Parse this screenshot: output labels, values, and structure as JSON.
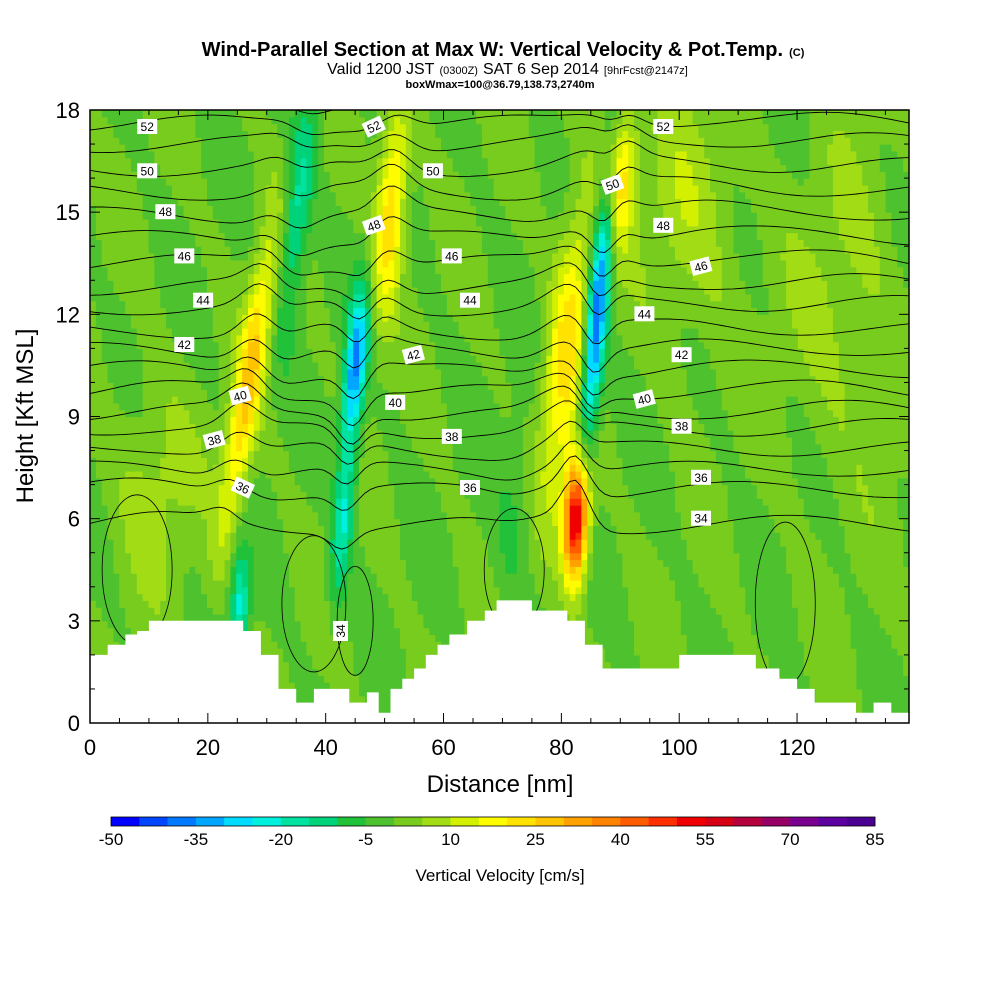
{
  "title": {
    "main": "Wind-Parallel Section at Max W: Vertical Velocity & Pot.Temp.",
    "main_suffix": "(C)",
    "valid_prefix": "Valid 1200 JST",
    "valid_zulu": "(0300Z)",
    "valid_date": "SAT 6 Sep 2014",
    "forecast": "[9hrFcst@2147z]",
    "box": "boxWmax=100@36.79,138.73,2740m"
  },
  "chart_data": {
    "type": "heatmap",
    "xlabel": "Distance [nm]",
    "ylabel": "Height [Kft MSL]",
    "xlim": [
      0,
      139
    ],
    "ylim": [
      0,
      18
    ],
    "x_ticks": [
      0,
      20,
      40,
      60,
      80,
      100,
      120
    ],
    "y_ticks": [
      0,
      3,
      6,
      9,
      12,
      15,
      18
    ],
    "colorbar": {
      "label": "Vertical Velocity [cm/s]",
      "min": -50,
      "max": 85,
      "step": 5,
      "tick_labels": [
        -50,
        -35,
        -20,
        -5,
        10,
        25,
        40,
        55,
        70,
        85
      ],
      "colors": [
        "#0000ff",
        "#0046ff",
        "#0078ff",
        "#00a6ff",
        "#00dcff",
        "#00f0e0",
        "#00e3a0",
        "#00d27a",
        "#21c23a",
        "#4ec22e",
        "#78cc1e",
        "#a2dc14",
        "#d2f000",
        "#fffc00",
        "#ffe200",
        "#ffc400",
        "#ffa200",
        "#ff8200",
        "#ff5c00",
        "#ff2e00",
        "#f00000",
        "#d40014",
        "#b4003c",
        "#960064",
        "#7a0090",
        "#5c00a0",
        "#4a0090"
      ]
    },
    "w_features": [
      {
        "x": 27,
        "z": 10,
        "sx": 2.5,
        "sz": 4.5,
        "w": 26,
        "tilt": 0.9
      },
      {
        "x": 25.5,
        "z": 3.5,
        "sx": 1.6,
        "sz": 1.6,
        "w": -22,
        "tilt": 0
      },
      {
        "x": 35,
        "z": 15,
        "sx": 2.5,
        "sz": 3.5,
        "w": -18,
        "tilt": 0.6
      },
      {
        "x": 45,
        "z": 10.5,
        "sx": 1.8,
        "sz": 2.2,
        "w": -35,
        "tilt": 0.5
      },
      {
        "x": 43,
        "z": 6,
        "sx": 1.8,
        "sz": 2.5,
        "w": -20,
        "tilt": 0.5
      },
      {
        "x": 51,
        "z": 15,
        "sx": 2.5,
        "sz": 3,
        "w": 26,
        "tilt": 0.4
      },
      {
        "x": 81,
        "z": 11,
        "sx": 3.5,
        "sz": 4.5,
        "w": 22,
        "tilt": 0.6
      },
      {
        "x": 82.5,
        "z": 6,
        "sx": 2,
        "sz": 1.8,
        "w": 62,
        "tilt": 0.2
      },
      {
        "x": 86,
        "z": 12,
        "sx": 1.8,
        "sz": 4,
        "w": -42,
        "tilt": 0.5
      },
      {
        "x": 90,
        "z": 16,
        "sx": 2.5,
        "sz": 2,
        "w": 24,
        "tilt": 0.3
      },
      {
        "x": 102,
        "z": 15,
        "sx": 8,
        "sz": 4,
        "w": 8,
        "tilt": 0
      },
      {
        "x": 11,
        "z": 7,
        "sx": 7,
        "sz": 3,
        "w": 7,
        "tilt": 0
      },
      {
        "x": 128,
        "z": 12,
        "sx": 10,
        "sz": 5,
        "w": 6,
        "tilt": 0
      },
      {
        "x": 72,
        "z": 6,
        "sx": 3.5,
        "sz": 3,
        "w": -6,
        "tilt": 0.3
      }
    ],
    "theta_levels": [
      34,
      35,
      36,
      37,
      38,
      39,
      40,
      41,
      42,
      43,
      44,
      45,
      46,
      47,
      48,
      49,
      50,
      51,
      52,
      53
    ],
    "theta_base_height": [
      5.8,
      6.8,
      7.4,
      8.0,
      8.6,
      9.1,
      9.7,
      10.3,
      10.9,
      11.5,
      12.2,
      12.8,
      13.5,
      14.2,
      14.9,
      15.6,
      16.3,
      17.0,
      17.6,
      18.3
    ],
    "contour_labels": [
      {
        "text": "52",
        "x": 9.7,
        "z": 17.5,
        "rot": 0
      },
      {
        "text": "50",
        "x": 9.7,
        "z": 16.2,
        "rot": 0
      },
      {
        "text": "48",
        "x": 12.8,
        "z": 15.0,
        "rot": 0
      },
      {
        "text": "46",
        "x": 16.0,
        "z": 13.7,
        "rot": 0
      },
      {
        "text": "44",
        "x": 19.2,
        "z": 12.4,
        "rot": 0
      },
      {
        "text": "42",
        "x": 16.0,
        "z": 11.1,
        "rot": 0
      },
      {
        "text": "40",
        "x": 25.5,
        "z": 9.6,
        "rot": -15
      },
      {
        "text": "38",
        "x": 21.1,
        "z": 8.3,
        "rot": -15
      },
      {
        "text": "36",
        "x": 25.9,
        "z": 6.9,
        "rot": 25
      },
      {
        "text": "34",
        "x": 42.6,
        "z": 2.7,
        "rot": -90
      },
      {
        "text": "52",
        "x": 48.2,
        "z": 17.5,
        "rot": -25
      },
      {
        "text": "50",
        "x": 58.2,
        "z": 16.2,
        "rot": 0
      },
      {
        "text": "48",
        "x": 48.2,
        "z": 14.6,
        "rot": -20
      },
      {
        "text": "46",
        "x": 61.4,
        "z": 13.7,
        "rot": 0
      },
      {
        "text": "44",
        "x": 64.5,
        "z": 12.4,
        "rot": 0
      },
      {
        "text": "42",
        "x": 54.9,
        "z": 10.8,
        "rot": -15
      },
      {
        "text": "40",
        "x": 51.8,
        "z": 9.4,
        "rot": 0
      },
      {
        "text": "38",
        "x": 61.4,
        "z": 8.4,
        "rot": 0
      },
      {
        "text": "36",
        "x": 64.5,
        "z": 6.9,
        "rot": 0
      },
      {
        "text": "52",
        "x": 97.3,
        "z": 17.5,
        "rot": 0
      },
      {
        "text": "50",
        "x": 88.7,
        "z": 15.8,
        "rot": -20
      },
      {
        "text": "48",
        "x": 97.3,
        "z": 14.6,
        "rot": 0
      },
      {
        "text": "46",
        "x": 103.7,
        "z": 13.4,
        "rot": -15
      },
      {
        "text": "44",
        "x": 94.1,
        "z": 12.0,
        "rot": 0
      },
      {
        "text": "42",
        "x": 100.4,
        "z": 10.8,
        "rot": 0
      },
      {
        "text": "40",
        "x": 94.1,
        "z": 9.5,
        "rot": -15
      },
      {
        "text": "38",
        "x": 100.4,
        "z": 8.7,
        "rot": 0
      },
      {
        "text": "36",
        "x": 103.7,
        "z": 7.2,
        "rot": 0
      },
      {
        "text": "34",
        "x": 103.7,
        "z": 6.0,
        "rot": 0
      }
    ],
    "terrain": [
      [
        0,
        2.0
      ],
      [
        3,
        2.0
      ],
      [
        3,
        2.3
      ],
      [
        6,
        2.3
      ],
      [
        6,
        2.6
      ],
      [
        8,
        2.6
      ],
      [
        8,
        2.7
      ],
      [
        10,
        2.7
      ],
      [
        10,
        3.0
      ],
      [
        26,
        3.0
      ],
      [
        26,
        2.7
      ],
      [
        29,
        2.7
      ],
      [
        29,
        2.0
      ],
      [
        32,
        2.0
      ],
      [
        32,
        1.0
      ],
      [
        35,
        1.0
      ],
      [
        35,
        0.6
      ],
      [
        38,
        0.6
      ],
      [
        38,
        1.0
      ],
      [
        44,
        1.0
      ],
      [
        44,
        0.6
      ],
      [
        47,
        0.6
      ],
      [
        47,
        0.9
      ],
      [
        49,
        0.9
      ],
      [
        49,
        0.3
      ],
      [
        51,
        0.3
      ],
      [
        51,
        1.0
      ],
      [
        53,
        1.0
      ],
      [
        53,
        1.3
      ],
      [
        55,
        1.3
      ],
      [
        55,
        1.6
      ],
      [
        57,
        1.6
      ],
      [
        57,
        2.0
      ],
      [
        59,
        2.0
      ],
      [
        59,
        2.3
      ],
      [
        61,
        2.3
      ],
      [
        61,
        2.6
      ],
      [
        64,
        2.6
      ],
      [
        64,
        3.0
      ],
      [
        67,
        3.0
      ],
      [
        67,
        3.3
      ],
      [
        69,
        3.3
      ],
      [
        69,
        3.6
      ],
      [
        75,
        3.6
      ],
      [
        75,
        3.3
      ],
      [
        81,
        3.3
      ],
      [
        81,
        3.0
      ],
      [
        84,
        3.0
      ],
      [
        84,
        2.3
      ],
      [
        87,
        2.3
      ],
      [
        87,
        1.6
      ],
      [
        100,
        1.6
      ],
      [
        100,
        2.0
      ],
      [
        113,
        2.0
      ],
      [
        113,
        1.6
      ],
      [
        117,
        1.6
      ],
      [
        117,
        1.3
      ],
      [
        120,
        1.3
      ],
      [
        120,
        1.0
      ],
      [
        123,
        1.0
      ],
      [
        123,
        0.6
      ],
      [
        130,
        0.6
      ],
      [
        130,
        0.3
      ],
      [
        133,
        0.3
      ],
      [
        133,
        0.6
      ],
      [
        136,
        0.6
      ],
      [
        136,
        0.3
      ],
      [
        139,
        0.3
      ]
    ]
  }
}
